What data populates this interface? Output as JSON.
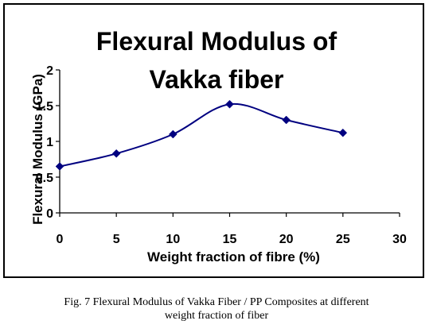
{
  "chart_data": {
    "type": "line",
    "title_lines": [
      "Flexural Modulus of",
      "Vakka fiber"
    ],
    "xlabel": "Weight fraction of fibre (%)",
    "ylabel": "Flexural Modulus (GPa)",
    "xlim": [
      0,
      30
    ],
    "ylim": [
      0,
      2
    ],
    "x_ticks": [
      "0",
      "5",
      "10",
      "15",
      "20",
      "25",
      "30"
    ],
    "y_ticks": [
      "0",
      "0.5",
      "1",
      "1.5",
      "2"
    ],
    "y_tick_values": [
      0,
      0.5,
      1,
      1.5,
      2
    ],
    "x_tick_values": [
      0,
      5,
      10,
      15,
      20,
      25,
      30
    ],
    "smooth": true,
    "grid": false,
    "series": [
      {
        "x": [
          0,
          5,
          10,
          15,
          20,
          25
        ],
        "values": [
          0.65,
          0.83,
          1.1,
          1.52,
          1.3,
          1.12
        ],
        "color": "#000080",
        "marker": "diamond"
      }
    ]
  },
  "caption": {
    "line1": "Fig. 7 Flexural Modulus of Vakka Fiber / PP Composites at different",
    "line2": "weight fraction of fiber"
  }
}
